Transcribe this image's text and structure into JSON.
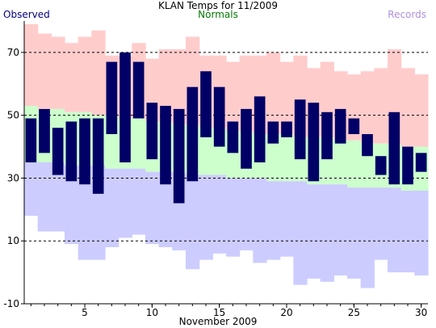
{
  "chart_data": {
    "type": "bar",
    "title": "KLAN Temps for 11/2009",
    "xlabel": "November 2009",
    "ylabel": "",
    "xlim": [
      0.5,
      30.5
    ],
    "ylim": [
      -10,
      80
    ],
    "yticks": [
      -10,
      10,
      30,
      50,
      70
    ],
    "xticks": [
      5,
      10,
      15,
      20,
      25,
      30
    ],
    "grid": {
      "dashed_at": [
        10,
        30,
        50,
        70
      ]
    },
    "days": [
      1,
      2,
      3,
      4,
      5,
      6,
      7,
      8,
      9,
      10,
      11,
      12,
      13,
      14,
      15,
      16,
      17,
      18,
      19,
      20,
      21,
      22,
      23,
      24,
      25,
      26,
      27,
      28,
      29,
      30
    ],
    "series": [
      {
        "name": "Records",
        "record_high": [
          79,
          76,
          75,
          73,
          75,
          77,
          69,
          69,
          73,
          68,
          71,
          71,
          75,
          69,
          69,
          67,
          69,
          69,
          70,
          67,
          69,
          65,
          67,
          64,
          63,
          64,
          65,
          71,
          65,
          63
        ],
        "record_low": [
          18,
          13,
          13,
          9,
          4,
          4,
          8,
          11,
          12,
          9,
          8,
          7,
          1,
          4,
          6,
          5,
          7,
          3,
          4,
          5,
          -4,
          -2,
          -3,
          -1,
          -2,
          -5,
          4,
          0,
          0,
          -1
        ]
      },
      {
        "name": "Normals",
        "normal_high": [
          53,
          52,
          52,
          51,
          51,
          50,
          50,
          49,
          49,
          48,
          48,
          47,
          47,
          46,
          46,
          45,
          45,
          44,
          44,
          44,
          43,
          43,
          43,
          42,
          42,
          41,
          41,
          41,
          40,
          40
        ],
        "normal_low": [
          35,
          35,
          35,
          34,
          34,
          34,
          33,
          33,
          33,
          32,
          32,
          32,
          31,
          31,
          31,
          30,
          30,
          30,
          29,
          29,
          29,
          28,
          28,
          28,
          27,
          27,
          27,
          27,
          26,
          26
        ]
      },
      {
        "name": "Observed",
        "high": [
          49,
          52,
          46,
          48,
          49,
          49,
          67,
          70,
          67,
          54,
          53,
          52,
          59,
          64,
          59,
          48,
          52,
          56,
          48,
          48,
          55,
          54,
          51,
          52,
          49,
          44,
          37,
          51,
          40,
          38
        ],
        "low": [
          35,
          38,
          31,
          29,
          28,
          25,
          44,
          35,
          49,
          36,
          28,
          22,
          29,
          43,
          40,
          38,
          33,
          35,
          41,
          43,
          36,
          29,
          36,
          41,
          44,
          37,
          31,
          28,
          28,
          32
        ]
      }
    ],
    "legend": {
      "position": "top"
    },
    "colors": {
      "record_band": "#ffcccc",
      "normal_band": "#ccffcc",
      "record_low_band": "#ccccff",
      "observed_bar": "#000066",
      "observed_label": "#000080",
      "normals_label": "#007a00",
      "records_label": "#b090e0"
    }
  }
}
